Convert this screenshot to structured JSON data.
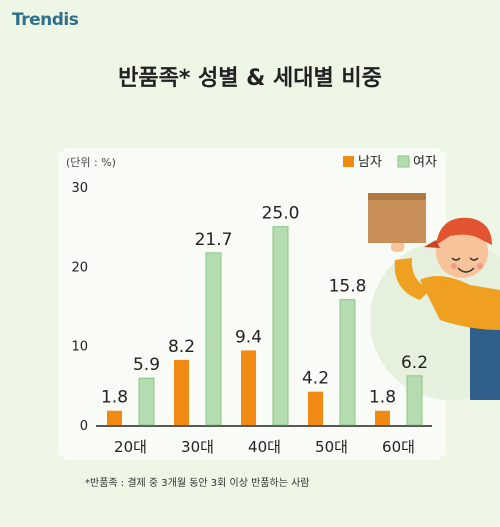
{
  "brand": {
    "name": "Trendis"
  },
  "header": {
    "title": "반품족* 성별 & 세대별 비중"
  },
  "footnote": "*반품족 : 결제 중 3개월 동안 3회 이상 반품하는 사람",
  "colors": {
    "male": "#f08a12",
    "female": "#b5dbb0",
    "female_stroke": "#8cc487"
  },
  "chart_data": {
    "type": "bar",
    "unit_label": "(단위 : %)",
    "categories": [
      "20대",
      "30대",
      "40대",
      "50대",
      "60대"
    ],
    "series": [
      {
        "name": "남자",
        "values": [
          1.8,
          8.2,
          9.4,
          4.2,
          1.8
        ]
      },
      {
        "name": "여자",
        "values": [
          5.9,
          21.7,
          25.0,
          15.8,
          6.2
        ]
      }
    ],
    "value_labels": [
      [
        "1.8",
        "8.2",
        "9.4",
        "4.2",
        "1.8"
      ],
      [
        "5.9",
        "21.7",
        "25.0",
        "15.8",
        "6.2"
      ]
    ],
    "ylim": [
      0,
      30
    ],
    "yticks": [
      "0",
      "10",
      "20",
      "30"
    ],
    "legend": "top-right",
    "grid": false
  }
}
